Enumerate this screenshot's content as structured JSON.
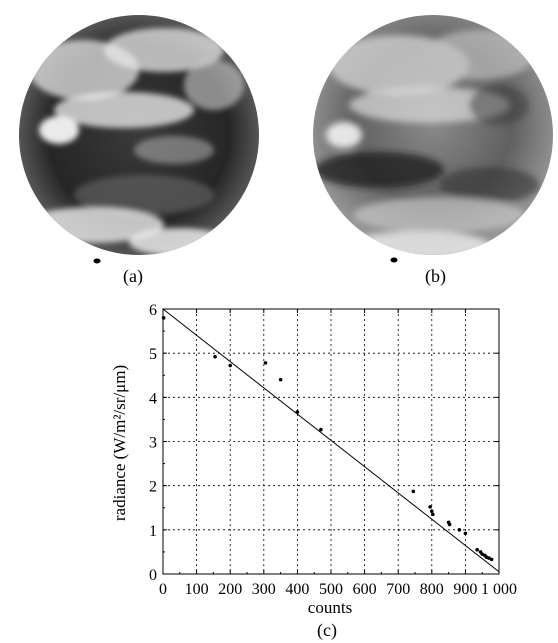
{
  "figure": {
    "panel_a": {
      "label": "(a)"
    },
    "panel_b": {
      "label": "(b)"
    },
    "panel_c": {
      "label": "(c)"
    }
  },
  "chart_data": {
    "type": "scatter",
    "xlabel": "counts",
    "ylabel": "radiance (W/m²/sr/μm)",
    "xlim": [
      0,
      1000
    ],
    "ylim": [
      0,
      6
    ],
    "xticks": [
      0,
      100,
      200,
      300,
      400,
      500,
      600,
      700,
      800,
      900,
      1000
    ],
    "xtick_labels": [
      "0",
      "100",
      "200",
      "300",
      "400",
      "500",
      "600",
      "700",
      "800",
      "900",
      "1 000"
    ],
    "yticks": [
      0,
      1,
      2,
      3,
      4,
      5,
      6
    ],
    "ytick_labels": [
      "0",
      "1",
      "2",
      "3",
      "4",
      "5",
      "6"
    ],
    "grid": true,
    "series": [
      {
        "points": [
          {
            "x": 2,
            "y": 5.8
          },
          {
            "x": 155,
            "y": 4.92
          },
          {
            "x": 200,
            "y": 4.72
          },
          {
            "x": 305,
            "y": 4.78
          },
          {
            "x": 350,
            "y": 4.4
          },
          {
            "x": 400,
            "y": 3.67
          },
          {
            "x": 470,
            "y": 3.27
          },
          {
            "x": 745,
            "y": 1.87
          },
          {
            "x": 795,
            "y": 1.52
          },
          {
            "x": 800,
            "y": 1.42
          },
          {
            "x": 803,
            "y": 1.35
          },
          {
            "x": 850,
            "y": 1.17
          },
          {
            "x": 853,
            "y": 1.12
          },
          {
            "x": 882,
            "y": 1.0
          },
          {
            "x": 900,
            "y": 0.92
          },
          {
            "x": 935,
            "y": 0.55
          },
          {
            "x": 945,
            "y": 0.5
          },
          {
            "x": 950,
            "y": 0.45
          },
          {
            "x": 958,
            "y": 0.42
          },
          {
            "x": 963,
            "y": 0.38
          },
          {
            "x": 970,
            "y": 0.36
          },
          {
            "x": 978,
            "y": 0.33
          }
        ]
      }
    ],
    "fit_line": {
      "from": {
        "x": 0,
        "y": 6.0
      },
      "to": {
        "x": 1000,
        "y": 0.05
      }
    }
  }
}
